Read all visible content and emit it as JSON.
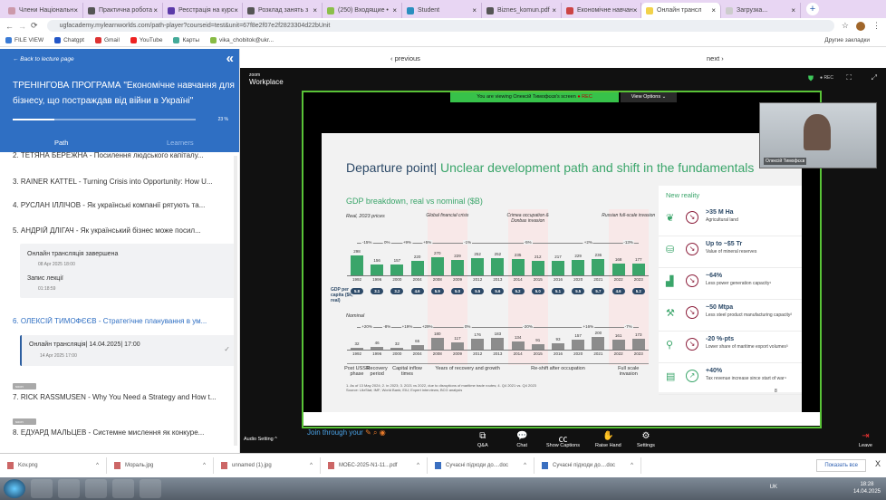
{
  "browser": {
    "tabs": [
      {
        "label": "Члени Національн",
        "color": "#c9a"
      },
      {
        "label": "Практична робота",
        "color": "#555"
      },
      {
        "label": "Реєстрація на курс",
        "color": "#5b3aa8"
      },
      {
        "label": "Розклад занять з",
        "color": "#555"
      },
      {
        "label": "(250) Входящие •",
        "color": "#8bbf4a"
      },
      {
        "label": "Student",
        "color": "#2a8fbf"
      },
      {
        "label": "Biznes_komun.pdf",
        "color": "#555"
      },
      {
        "label": "Економічне навчан",
        "color": "#c44"
      },
      {
        "label": "Онлайн трансл",
        "color": "#f2d24a",
        "active": true
      },
      {
        "label": "Загрузка...",
        "color": "#ccc"
      }
    ],
    "new_tab": "+",
    "url": "ugfacademy.mylearnworlds.com/path-player?courseid=test&unit=67f8e2f07e2f2823304d22bUnit",
    "bookmarks": [
      "FILE VIEW",
      "Chatgpt",
      "Gmail",
      "YouTube",
      "Карты",
      "vika_chobitok@ukr..."
    ],
    "other_bookmarks": "Другие закладки"
  },
  "sidebar": {
    "back": "← Back to lecture page",
    "course_title": "ТРЕНІНГОВА ПРОГРАМА \"Економічне навчання для бізнесу, що постраждав від війни в Україні\"",
    "progress_pct": 23,
    "progress_label": "23 %",
    "tabs": [
      "Path",
      "Learners"
    ],
    "items": [
      "2. ТЕТЯНА БЕРЕЖНА - Посилення людського капіталу...",
      "3. RAINER KATTEL - Turning Crisis into Opportunity: How U...",
      "4. РУСЛАН ІЛЛІЧОВ - Як українські компанії рятують та...",
      "5. АНДРІЙ ДЛІГАЧ - Як український бізнес може посил...",
      "6. ОЛЕКСІЙ ТИМОФЄЄВ - Стратегічне планування в ум...",
      "7. RICK RASSMUSEN - Why You Need a Strategy and How t...",
      "8. ЕДУАРД МАЛЬЦЕВ - Системне мислення як конкуре..."
    ],
    "item5_sub": [
      {
        "title": "Онлайн трансляція завершена",
        "date": "08 Apr 2025 18:00"
      },
      {
        "title": "Запис лекції",
        "date": "01:18:59"
      }
    ],
    "item6_sub": {
      "title": "Онлайн трансляція| 14.04.2025| 17:00",
      "date": "14 Apr 2025 17:00"
    },
    "soon_badge": "soon"
  },
  "nav": {
    "previous": "‹ previous",
    "next": "next ›"
  },
  "zoom": {
    "logo_top": "zoom",
    "logo": "Workplace",
    "rec": "● REC",
    "viewing": "You are viewing Олексій Тимофєєв's screen",
    "viewing_rec": "● REC",
    "view_options": "View Options ⌄",
    "presenter": "Олексій Тимофєєв",
    "join": "Join through your",
    "audio": "Audio Setting ^",
    "tools": [
      "Q&A",
      "Chat",
      "Show Captions",
      "Raise Hand",
      "Settings"
    ],
    "leave": "Leave"
  },
  "slide": {
    "title_a": "Departure point|",
    "title_b": " Unclear development path and shift in the fundamentals",
    "page": "8",
    "new_reality_title": "New reality",
    "new_reality": [
      {
        "head": ">35 M Ha",
        "desc": "Agricultural land",
        "dir": "down"
      },
      {
        "head": "Up to ~$5 Tr",
        "desc": "Value of mineral reserves",
        "dir": "down"
      },
      {
        "head": "~64%",
        "desc": "Less power generation capacity¹",
        "dir": "down"
      },
      {
        "head": "~50 Mtpa",
        "desc": "Less steel product manufacturing capacity²",
        "dir": "down"
      },
      {
        "head": "-20 %-pts",
        "desc": "Lower share of maritime export volumes³",
        "dir": "down"
      },
      {
        "head": "+40%",
        "desc": "Tax revenue increase since start of war⁴",
        "dir": "up"
      }
    ],
    "footnote": "1. As of 13 May 2024; 2. in 2023; 3. 2021 vs 2022, due to disruptions of maritime trade routes; 4. Q4 2021 vs. Q4 2023",
    "source": "Source: UkrStat; IMF; World Bank; EIU; Expert interviews; BCG analysis"
  },
  "chart_data": {
    "type": "bar",
    "title": "GDP breakdown, real vs nominal ($B)",
    "categories": [
      "1992",
      "1996",
      "2000",
      "2004",
      "2008",
      "2009",
      "2012",
      "2013",
      "2014",
      "2015",
      "2016",
      "2020",
      "2021",
      "2022",
      "2023"
    ],
    "series": [
      {
        "name": "Real, 2023 prices",
        "values": [
          298,
          156,
          157,
          220,
          270,
          229,
          252,
          252,
          235,
          212,
          217,
          229,
          236,
          168,
          177
        ],
        "color": "#3aa56a"
      },
      {
        "name": "Nominal",
        "values": [
          32,
          46,
          32,
          65,
          180,
          117,
          176,
          183,
          134,
          91,
          93,
          157,
          200,
          161,
          173
        ],
        "color": "#8c8c8c"
      }
    ],
    "per_capita_label": "GDP per capita ($k, real)",
    "per_capita": [
      "5.8",
      "3.1",
      "3.2",
      "4.6",
      "5.9",
      "5.0",
      "5.5",
      "5.6",
      "5.2",
      "5.0",
      "5.1",
      "5.5",
      "5.7",
      "4.6",
      "5.2"
    ],
    "real_growth": [
      {
        "label": "-15%",
        "at": 0.5
      },
      {
        "label": "0%",
        "at": 1.5
      },
      {
        "label": "+9%",
        "at": 2.5
      },
      {
        "label": "+5%",
        "at": 3.5
      },
      {
        "label": "-1%",
        "at": 5.5
      },
      {
        "label": "-5%",
        "at": 8.5
      },
      {
        "label": "+2%",
        "at": 11.5
      },
      {
        "label": "-13%",
        "at": 13.5
      }
    ],
    "nominal_growth": [
      {
        "label": "+20%",
        "at": 0.5
      },
      {
        "label": "-8%",
        "at": 1.5
      },
      {
        "label": "+19%",
        "at": 2.5
      },
      {
        "label": "+29%",
        "at": 3.5
      },
      {
        "label": "0%",
        "at": 5.5
      },
      {
        "label": "-20%",
        "at": 8.5
      },
      {
        "label": "+16%",
        "at": 11.5
      },
      {
        "label": "-7%",
        "at": 13.5
      }
    ],
    "events": [
      {
        "label": "Global financial crisis",
        "from": 4,
        "to": 5
      },
      {
        "label": "Crimea occupation & Donbas invasion",
        "from": 8,
        "to": 9
      },
      {
        "label": "Russian full-scale invasion",
        "from": 13,
        "to": 14
      }
    ],
    "periods": [
      {
        "label": "Post USSR phase",
        "from": 0,
        "to": 0
      },
      {
        "label": "Recovery period",
        "from": 1,
        "to": 1
      },
      {
        "label": "Capital inflow times",
        "from": 2,
        "to": 3
      },
      {
        "label": "Years of recovery and growth",
        "from": 4,
        "to": 7
      },
      {
        "label": "Re-shift after occupation",
        "from": 8,
        "to": 12
      },
      {
        "label": "Full scale invasion",
        "from": 13,
        "to": 14
      }
    ]
  },
  "downloads": {
    "files": [
      "Kov.png",
      "Мораль.jpg",
      "unnamed (1).jpg",
      "МОБС-2025-N1-11...pdf",
      "Сучасні підходи до....doc",
      "Сучасні підходи до....doc"
    ],
    "show_all": "Показать все",
    "close": "X"
  },
  "taskbar": {
    "lang": "UK",
    "time": "18:28",
    "date": "14.04.2025"
  }
}
